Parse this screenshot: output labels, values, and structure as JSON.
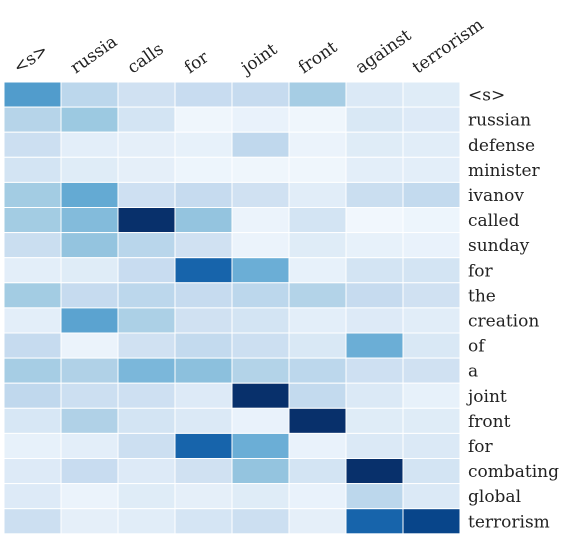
{
  "chart_data": {
    "type": "heatmap",
    "title": "",
    "xlabel": "",
    "ylabel": "",
    "x_categories": [
      "<s>",
      "russia",
      "calls",
      "for",
      "joint",
      "front",
      "against",
      "terrorism"
    ],
    "y_categories": [
      "<s>",
      "russian",
      "defense",
      "minister",
      "ivanov",
      "called",
      "sunday",
      "for",
      "the",
      "creation",
      "of",
      "a",
      "joint",
      "front",
      "for",
      "combating",
      "global",
      "terrorism"
    ],
    "colormap": "Blues",
    "value_range": [
      0,
      1
    ],
    "values": [
      [
        0.58,
        0.28,
        0.2,
        0.24,
        0.25,
        0.35,
        0.14,
        0.12
      ],
      [
        0.3,
        0.38,
        0.18,
        0.04,
        0.07,
        0.04,
        0.15,
        0.13
      ],
      [
        0.22,
        0.1,
        0.09,
        0.08,
        0.27,
        0.06,
        0.12,
        0.11
      ],
      [
        0.18,
        0.12,
        0.09,
        0.05,
        0.04,
        0.04,
        0.1,
        0.1
      ],
      [
        0.36,
        0.52,
        0.21,
        0.25,
        0.2,
        0.11,
        0.23,
        0.26
      ],
      [
        0.36,
        0.44,
        1.0,
        0.4,
        0.06,
        0.18,
        0.03,
        0.05
      ],
      [
        0.23,
        0.4,
        0.29,
        0.2,
        0.06,
        0.12,
        0.08,
        0.07
      ],
      [
        0.1,
        0.12,
        0.24,
        0.8,
        0.5,
        0.08,
        0.18,
        0.18
      ],
      [
        0.36,
        0.25,
        0.28,
        0.25,
        0.28,
        0.31,
        0.25,
        0.2
      ],
      [
        0.1,
        0.55,
        0.33,
        0.2,
        0.18,
        0.1,
        0.13,
        0.11
      ],
      [
        0.25,
        0.06,
        0.2,
        0.26,
        0.22,
        0.15,
        0.5,
        0.15
      ],
      [
        0.35,
        0.32,
        0.46,
        0.42,
        0.31,
        0.28,
        0.21,
        0.2
      ],
      [
        0.27,
        0.22,
        0.21,
        0.13,
        1.0,
        0.26,
        0.14,
        0.08
      ],
      [
        0.16,
        0.32,
        0.18,
        0.14,
        0.07,
        1.0,
        0.12,
        0.12
      ],
      [
        0.08,
        0.1,
        0.22,
        0.8,
        0.5,
        0.07,
        0.14,
        0.14
      ],
      [
        0.13,
        0.24,
        0.13,
        0.2,
        0.4,
        0.18,
        1.0,
        0.18
      ],
      [
        0.13,
        0.06,
        0.12,
        0.09,
        0.12,
        0.07,
        0.28,
        0.14
      ],
      [
        0.22,
        0.09,
        0.11,
        0.17,
        0.22,
        0.09,
        0.8,
        0.92
      ]
    ]
  }
}
